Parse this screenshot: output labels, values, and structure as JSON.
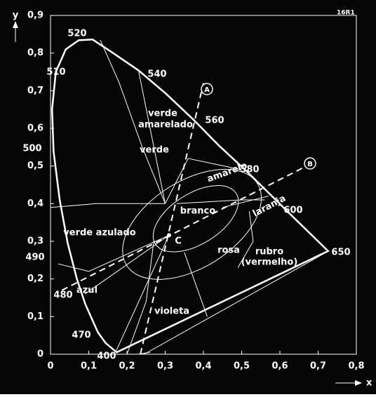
{
  "header": {
    "code": "16R1"
  },
  "axes": {
    "y_label": "y",
    "x_label": "x",
    "yticks": [
      "0,9",
      "0,8",
      "0,7",
      "0,6",
      "0,5",
      "0,4",
      "0,3",
      "0,2",
      "0,1",
      "0"
    ],
    "xticks": [
      "0",
      "0,1",
      "0,2",
      "0,3",
      "0,4",
      "0,5",
      "0,6",
      "0,7",
      "0,8"
    ]
  },
  "wavelengths": [
    "520",
    "510",
    "500",
    "490",
    "480",
    "470",
    "400",
    "540",
    "560",
    "580",
    "600",
    "650"
  ],
  "regions": {
    "verde": "verde",
    "verde_amarelado": [
      "verde",
      "amarelado"
    ],
    "amarelo": "amarelo",
    "laranja": "laranja",
    "branco": "branco",
    "verde_azulado": "verde azulado",
    "rosa": "rosa",
    "rubro": [
      "rubro",
      "(vermelho)"
    ],
    "azul": "azul",
    "violeta": "violeta"
  },
  "points": {
    "c": "C",
    "a": "A",
    "b": "B"
  }
}
